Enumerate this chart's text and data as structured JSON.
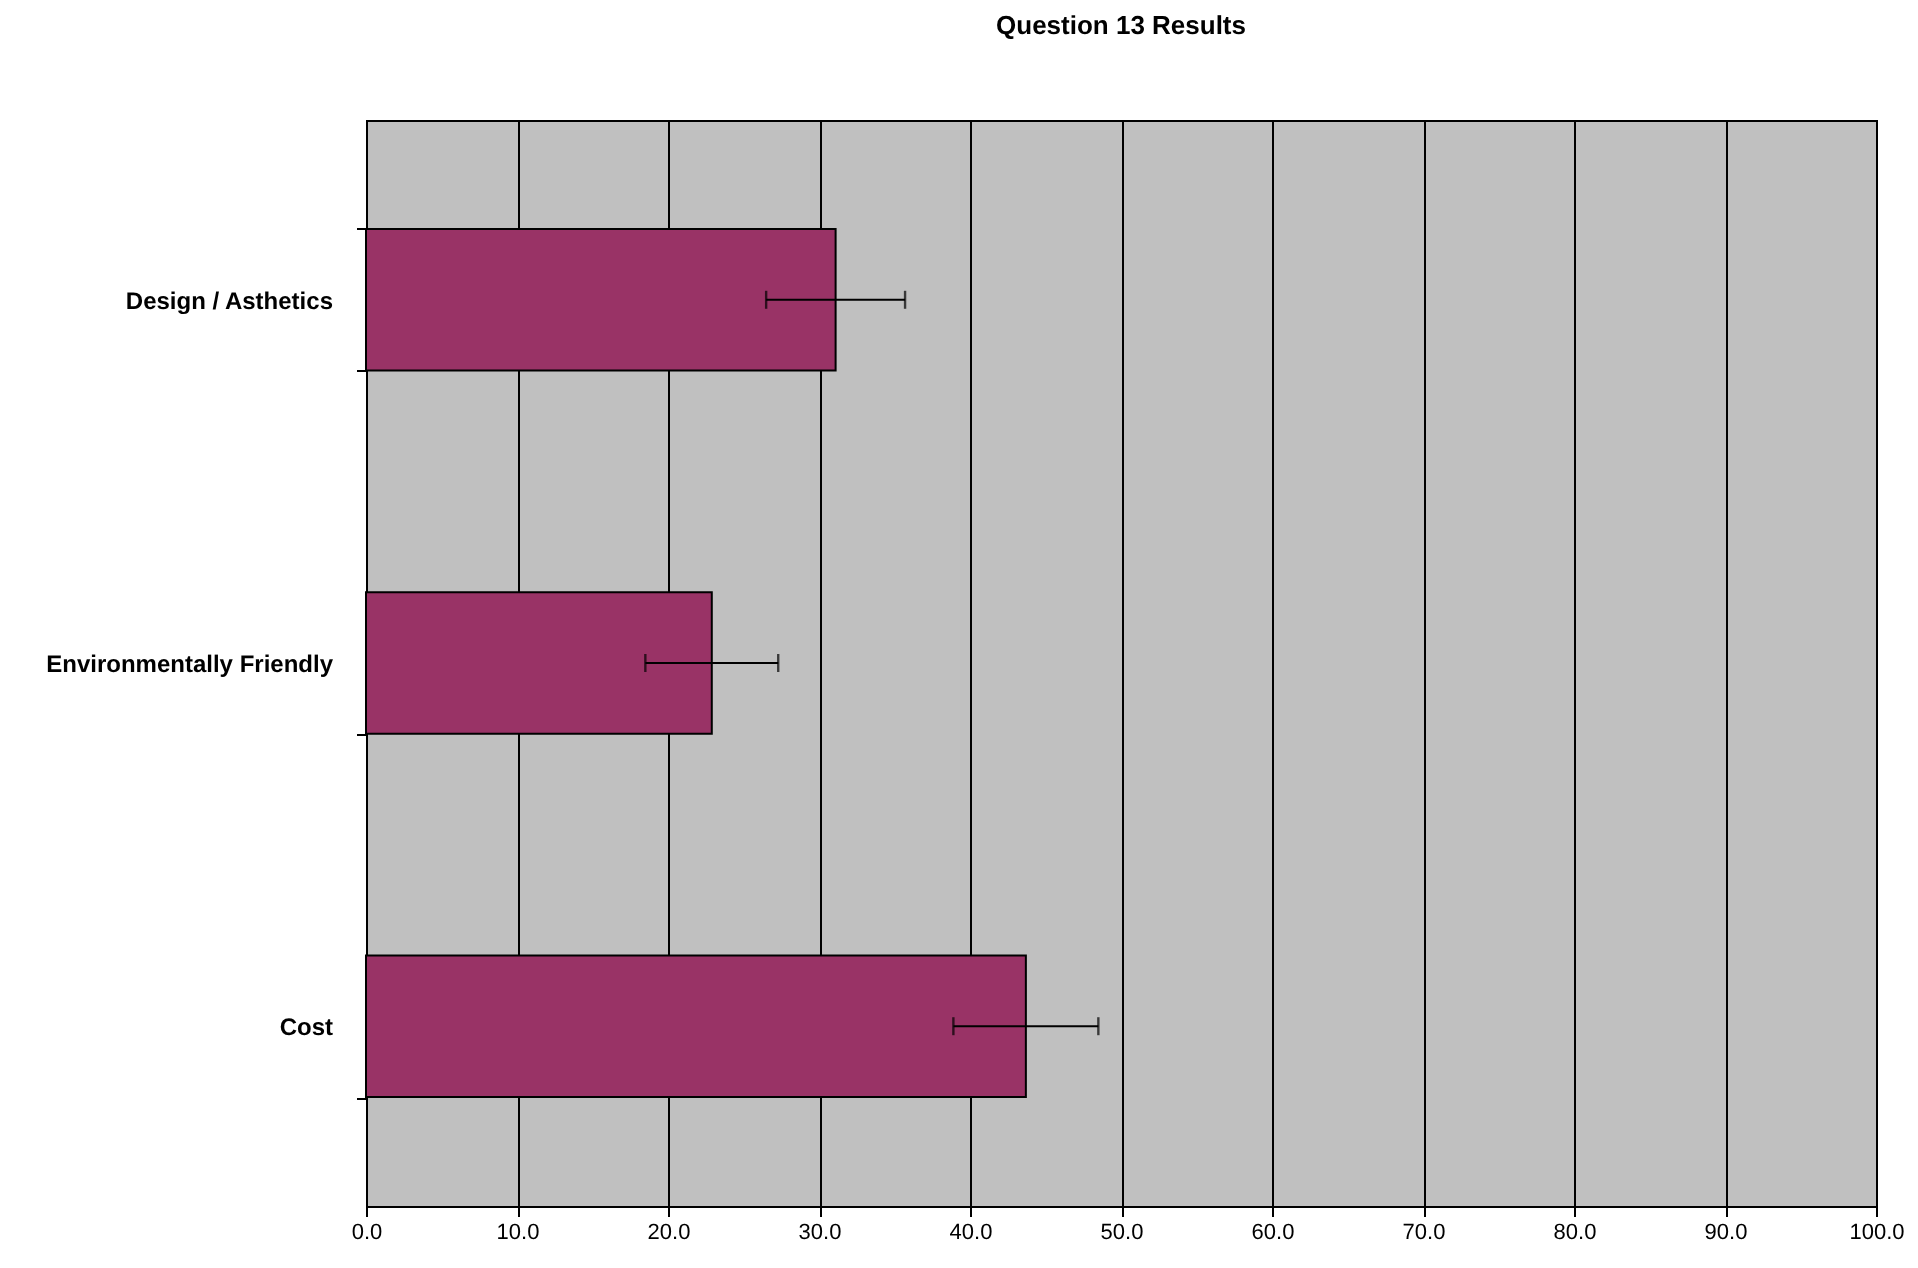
{
  "chart_data": {
    "type": "bar",
    "orientation": "horizontal",
    "title": "Question 13 Results",
    "categories": [
      "Design / Asthetics",
      "Environmentally Friendly",
      "Cost"
    ],
    "values": [
      31.1,
      22.9,
      43.7
    ],
    "errors": [
      4.6,
      4.4,
      4.8
    ],
    "color": "#993366",
    "xlim": [
      0,
      100
    ],
    "xticks": [
      {
        "value": 0,
        "label": "0.0"
      },
      {
        "value": 10,
        "label": "10.0"
      },
      {
        "value": 20,
        "label": "20.0"
      },
      {
        "value": 30,
        "label": "30.0"
      },
      {
        "value": 40,
        "label": "40.0"
      },
      {
        "value": 50,
        "label": "50.0"
      },
      {
        "value": 60,
        "label": "60.0"
      },
      {
        "value": 70,
        "label": "70.0"
      },
      {
        "value": 80,
        "label": "80.0"
      },
      {
        "value": 90,
        "label": "90.0"
      },
      {
        "value": 100,
        "label": "100.0"
      }
    ],
    "grid": "x"
  }
}
